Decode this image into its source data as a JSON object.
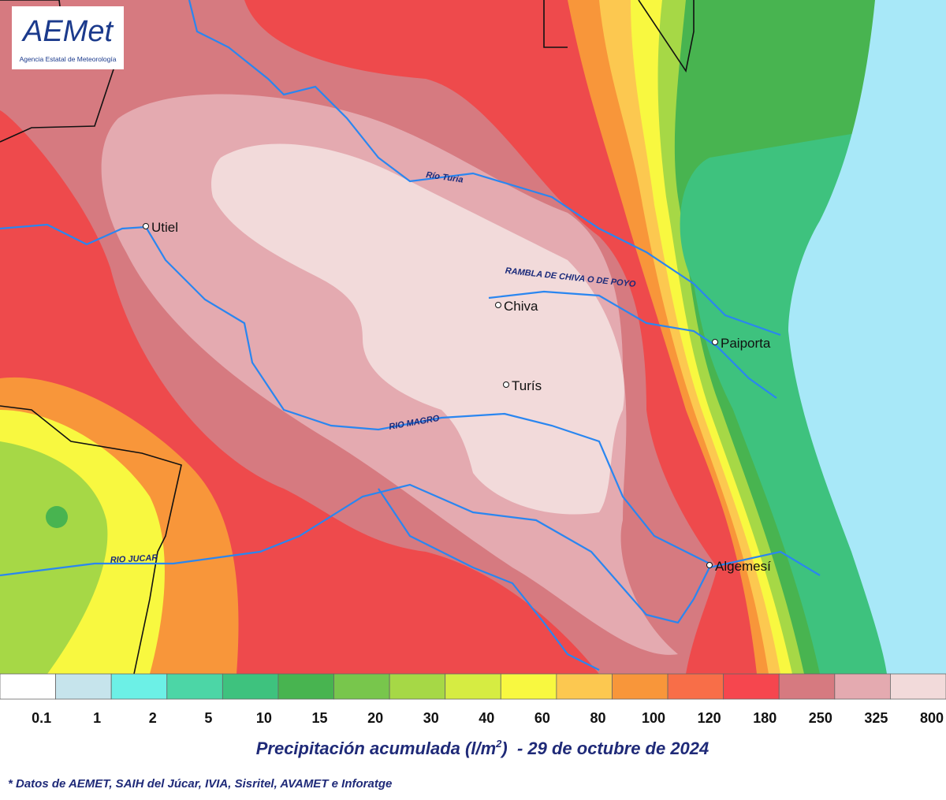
{
  "logo": {
    "brand": "AEMet",
    "subtitle": "Agencia Estatal de Meteorología"
  },
  "rivers": [
    "Río Turia",
    "RAMBLA DE CHIVA O DE POYO",
    "RIO MAGRO",
    "RIO JUCAR"
  ],
  "towns": [
    "Utiel",
    "Chiva",
    "Turís",
    "Paiporta",
    "Algemesí"
  ],
  "legend": [
    {
      "label": "0.1",
      "color": "#ffffff"
    },
    {
      "label": "1",
      "color": "#c6e4ec"
    },
    {
      "label": "2",
      "color": "#6cf0e6"
    },
    {
      "label": "5",
      "color": "#4cd6a6"
    },
    {
      "label": "10",
      "color": "#3ec27e"
    },
    {
      "label": "15",
      "color": "#48b450"
    },
    {
      "label": "20",
      "color": "#78c64c"
    },
    {
      "label": "30",
      "color": "#a6d846"
    },
    {
      "label": "40",
      "color": "#d6ec42"
    },
    {
      "label": "60",
      "color": "#f8f840"
    },
    {
      "label": "80",
      "color": "#fcc850"
    },
    {
      "label": "100",
      "color": "#f8963a"
    },
    {
      "label": "120",
      "color": "#f86e48"
    },
    {
      "label": "180",
      "color": "#f6464e"
    },
    {
      "label": "250",
      "color": "#d67a80"
    },
    {
      "label": "325",
      "color": "#e4aab0"
    },
    {
      "label": "800",
      "color": "#f2dada"
    }
  ],
  "title": {
    "text": "Precipitación acumulada (l/m",
    "superscript": "2",
    "suffix": ")  - 29 de octubre de 2024"
  },
  "footnote": "* Datos de AEMET, SAIH del Júcar, IVIA, Sisritel, AVAMET e Inforatge"
}
